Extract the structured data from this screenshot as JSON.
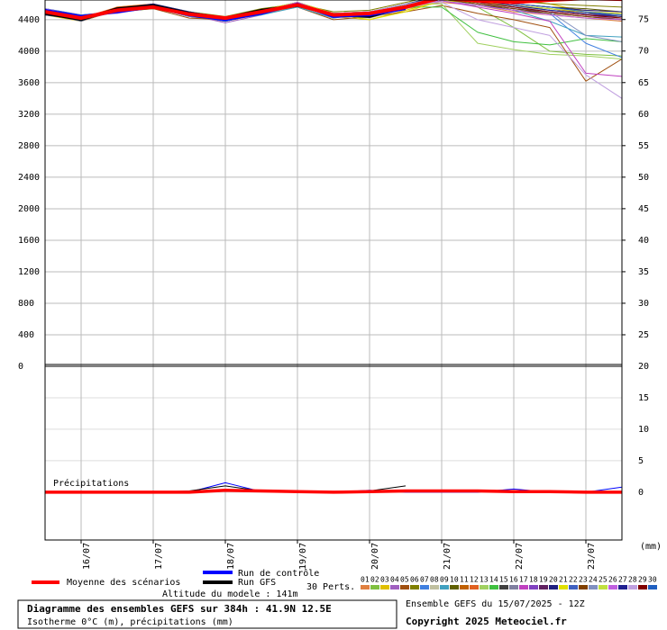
{
  "chart_data": [
    {
      "type": "line",
      "title": "Diagramme des ensembles GEFS sur 384h : 41.9N 12.5E",
      "subtitle": "Isotherme 0°C (m), précipitations (mm)",
      "run_label": "Ensemble GEFS du 15/07/2025 - 12Z",
      "copyright": "Copyright 2025 Meteociel.fr",
      "members_label": "30 Perts.",
      "altitude_label": "Altitude du modele : 141m",
      "x": [
        0,
        12,
        24,
        36,
        48,
        60,
        72,
        84,
        96,
        108,
        120,
        132,
        144,
        156,
        168,
        180,
        192
      ],
      "xlim": [
        0,
        192
      ],
      "ylim": [
        0,
        4650
      ],
      "yticks": [
        0,
        400,
        800,
        1200,
        1600,
        2000,
        2400,
        2800,
        3200,
        3600,
        4000,
        4400
      ],
      "y2lim": [
        20,
        78.1
      ],
      "y2ticks": [
        25,
        30,
        35,
        40,
        45,
        50,
        55,
        60,
        65,
        70,
        75
      ],
      "grid": true,
      "series": [
        {
          "name": "Moyenne des scénarios",
          "color": "#ff0000",
          "values": [
            4500,
            4420,
            4520,
            4560,
            4470,
            4420,
            4500,
            4590,
            4460,
            4480,
            4560,
            4680,
            4640,
            4620,
            4650,
            4670,
            4660
          ]
        },
        {
          "name": "Run de contrôle",
          "color": "#0000ff",
          "values": [
            4520,
            4440,
            4500,
            4560,
            4460,
            4400,
            4480,
            4600,
            4440,
            4460,
            4540,
            null,
            null,
            null,
            null,
            null,
            null
          ]
        },
        {
          "name": "Run GFS",
          "color": "#000000",
          "values": [
            4480,
            4400,
            4540,
            4580,
            4480,
            4420,
            4520,
            4580,
            4460,
            4440,
            4560,
            null,
            null,
            null,
            null,
            null,
            null
          ]
        },
        {
          "name": "01",
          "color": "#e08040",
          "values": [
            4480,
            4400,
            4540,
            4580,
            4440,
            4380,
            4470,
            4560,
            4420,
            4500,
            4540,
            4620,
            4580,
            4500,
            4460,
            4420,
            4380
          ]
        },
        {
          "name": "02",
          "color": "#80c040",
          "values": [
            4520,
            4440,
            4500,
            4540,
            4480,
            4400,
            4520,
            4600,
            4480,
            4460,
            4600,
            4700,
            4560,
            4300,
            4000,
            3960,
            3940
          ]
        },
        {
          "name": "03",
          "color": "#e0c000",
          "values": [
            4460,
            4380,
            4560,
            4600,
            4500,
            4420,
            4480,
            4580,
            4440,
            4400,
            4520,
            4640,
            4700,
            4660,
            4600,
            4500,
            4420
          ]
        },
        {
          "name": "04",
          "color": "#a060c0",
          "values": [
            4540,
            4460,
            4480,
            4560,
            4460,
            4360,
            4460,
            4620,
            4460,
            4480,
            4580,
            4680,
            4620,
            4560,
            4500,
            4460,
            4400
          ]
        },
        {
          "name": "05",
          "color": "#a05010",
          "values": [
            4500,
            4420,
            4520,
            4540,
            4420,
            4400,
            4500,
            4560,
            4400,
            4440,
            4500,
            4580,
            4480,
            4400,
            4300,
            3620,
            3900
          ]
        },
        {
          "name": "06",
          "color": "#808000",
          "values": [
            4480,
            4400,
            4540,
            4560,
            4500,
            4440,
            4540,
            4600,
            4500,
            4520,
            4620,
            4720,
            4680,
            4640,
            4600,
            4580,
            4560
          ]
        },
        {
          "name": "07",
          "color": "#4080e0",
          "values": [
            4520,
            4460,
            4500,
            4580,
            4460,
            4380,
            4480,
            4600,
            4440,
            4460,
            4560,
            4660,
            4600,
            4540,
            4480,
            4100,
            3920
          ]
        },
        {
          "name": "08",
          "color": "#c0c0a0",
          "values": [
            4500,
            4440,
            4520,
            4600,
            4500,
            4420,
            4500,
            4580,
            4460,
            4420,
            4540,
            4640,
            4600,
            4560,
            4520,
            4480,
            4460
          ]
        },
        {
          "name": "09",
          "color": "#40a0c0",
          "values": [
            4460,
            4400,
            4540,
            4560,
            4440,
            4400,
            4460,
            4560,
            4420,
            4480,
            4560,
            4640,
            4580,
            4520,
            4380,
            4200,
            4180
          ]
        },
        {
          "name": "10",
          "color": "#606000",
          "values": [
            4540,
            4420,
            4500,
            4540,
            4480,
            4420,
            4520,
            4620,
            4480,
            4500,
            4600,
            4700,
            4660,
            4600,
            4560,
            4540,
            4500
          ]
        },
        {
          "name": "11",
          "color": "#c06000",
          "values": [
            4500,
            4380,
            4520,
            4580,
            4460,
            4400,
            4500,
            4600,
            4460,
            4460,
            4580,
            4660,
            4620,
            4580,
            4540,
            4480,
            4440
          ]
        },
        {
          "name": "12",
          "color": "#e06020",
          "values": [
            4480,
            4420,
            4560,
            4600,
            4480,
            4380,
            4480,
            4580,
            4440,
            4480,
            4560,
            4680,
            4640,
            4600,
            4560,
            4520,
            4500
          ]
        },
        {
          "name": "13",
          "color": "#a0d060",
          "values": [
            4520,
            4440,
            4500,
            4560,
            4440,
            4420,
            4500,
            4600,
            4480,
            4500,
            4600,
            4600,
            4100,
            4020,
            3960,
            3940,
            3900
          ]
        },
        {
          "name": "14",
          "color": "#40c040",
          "values": [
            4500,
            4400,
            4520,
            4560,
            4480,
            4400,
            4500,
            4580,
            4460,
            4460,
            4560,
            4560,
            4240,
            4120,
            4080,
            4160,
            4120
          ]
        },
        {
          "name": "15",
          "color": "#404040",
          "values": [
            4460,
            4420,
            4540,
            4580,
            4460,
            4380,
            4480,
            4600,
            4440,
            4480,
            4580,
            4660,
            4600,
            4520,
            4480,
            4440,
            4400
          ]
        },
        {
          "name": "16",
          "color": "#8080a0",
          "values": [
            4540,
            4440,
            4500,
            4560,
            4500,
            4420,
            4520,
            4620,
            4480,
            4500,
            4600,
            4700,
            4640,
            4580,
            4540,
            4500,
            4480
          ]
        },
        {
          "name": "17",
          "color": "#c040c0",
          "values": [
            4500,
            4420,
            4540,
            4600,
            4480,
            4400,
            4500,
            4580,
            4460,
            4460,
            4560,
            4640,
            4560,
            4480,
            4380,
            3720,
            3680
          ]
        },
        {
          "name": "18",
          "color": "#8040c0",
          "values": [
            4480,
            4400,
            4500,
            4560,
            4460,
            4420,
            4500,
            4600,
            4460,
            4480,
            4580,
            4680,
            4620,
            4560,
            4500,
            4460,
            4420
          ]
        },
        {
          "name": "19",
          "color": "#602060",
          "values": [
            4520,
            4440,
            4520,
            4580,
            4480,
            4380,
            4480,
            4580,
            4440,
            4460,
            4560,
            4660,
            4600,
            4540,
            4500,
            4460,
            4440
          ]
        },
        {
          "name": "20",
          "color": "#202080",
          "values": [
            4500,
            4420,
            4540,
            4560,
            4440,
            4400,
            4500,
            4600,
            4480,
            4500,
            4600,
            4700,
            4660,
            4600,
            4560,
            4520,
            4500
          ]
        },
        {
          "name": "21",
          "color": "#e0e000",
          "values": [
            4460,
            4400,
            4520,
            4580,
            4500,
            4420,
            4520,
            4620,
            4480,
            4400,
            4500,
            4640,
            4620,
            4580,
            4540,
            4500,
            4480
          ]
        },
        {
          "name": "22",
          "color": "#4060c0",
          "values": [
            4540,
            4460,
            4500,
            4560,
            4460,
            4380,
            4480,
            4580,
            4440,
            4480,
            4580,
            4680,
            4640,
            4580,
            4520,
            4480,
            4460
          ]
        },
        {
          "name": "23",
          "color": "#804000",
          "values": [
            4500,
            4420,
            4520,
            4600,
            4480,
            4400,
            4500,
            4600,
            4460,
            4460,
            4560,
            4660,
            4600,
            4540,
            4480,
            4440,
            4400
          ]
        },
        {
          "name": "24",
          "color": "#8090c0",
          "values": [
            4480,
            4380,
            4540,
            4560,
            4440,
            4420,
            4480,
            4580,
            4460,
            4500,
            4600,
            4680,
            4620,
            4560,
            4500,
            4200,
            4120
          ]
        },
        {
          "name": "25",
          "color": "#c0e040",
          "values": [
            4520,
            4440,
            4500,
            4580,
            4480,
            4400,
            4520,
            4600,
            4480,
            4480,
            4580,
            4660,
            4620,
            4580,
            4540,
            4500,
            4460
          ]
        },
        {
          "name": "26",
          "color": "#c060e0",
          "values": [
            4500,
            4420,
            4520,
            4560,
            4460,
            4380,
            4500,
            4620,
            4460,
            4480,
            4560,
            4640,
            4580,
            4520,
            4460,
            4420,
            4400
          ]
        },
        {
          "name": "27",
          "color": "#202090",
          "values": [
            4460,
            4400,
            4540,
            4600,
            4500,
            4420,
            4480,
            4580,
            4440,
            4460,
            4580,
            4680,
            4640,
            4580,
            4520,
            4480,
            4440
          ]
        },
        {
          "name": "28",
          "color": "#c0a0e0",
          "values": [
            4540,
            4440,
            4500,
            4560,
            4460,
            4400,
            4500,
            4600,
            4480,
            4500,
            4600,
            4620,
            4400,
            4300,
            4200,
            3700,
            3400
          ]
        },
        {
          "name": "29",
          "color": "#800000",
          "values": [
            4500,
            4420,
            4520,
            4580,
            4480,
            4420,
            4520,
            4600,
            4460,
            4460,
            4560,
            4660,
            4620,
            4560,
            4500,
            4460,
            4420
          ]
        },
        {
          "name": "30",
          "color": "#2060c0",
          "values": [
            4480,
            4400,
            4540,
            4560,
            4460,
            4380,
            4480,
            4580,
            4460,
            4480,
            4580,
            4680,
            4640,
            4600,
            4560,
            4500,
            4460
          ]
        }
      ]
    },
    {
      "type": "line",
      "title": "Précipitations",
      "unit_label": "(mm)",
      "x": [
        0,
        12,
        24,
        36,
        48,
        60,
        72,
        84,
        96,
        108,
        120,
        132,
        144,
        156,
        168,
        180,
        192
      ],
      "xlim": [
        0,
        192
      ],
      "xticks": [
        {
          "value": 12,
          "label": "16/07"
        },
        {
          "value": 36,
          "label": "17/07"
        },
        {
          "value": 60,
          "label": "18/07"
        },
        {
          "value": 84,
          "label": "19/07"
        },
        {
          "value": 108,
          "label": "20/07"
        },
        {
          "value": 132,
          "label": "21/07"
        },
        {
          "value": 156,
          "label": "22/07"
        },
        {
          "value": 180,
          "label": "23/07"
        }
      ],
      "ylim": [
        -7.6,
        20
      ],
      "yticks": [
        0,
        5,
        10,
        15,
        20
      ],
      "grid": true,
      "series": [
        {
          "color": "#0000ff",
          "values": [
            0,
            0,
            0,
            0,
            0,
            1.5,
            0.1,
            0,
            0,
            0.3,
            0,
            0,
            0,
            0.5,
            0,
            0,
            0.8
          ]
        },
        {
          "color": "#000000",
          "values": [
            0,
            0,
            0,
            0,
            0.2,
            1,
            0.2,
            0,
            0,
            0.2,
            1,
            null,
            null,
            null,
            null,
            null,
            null
          ]
        },
        {
          "color": "#ff0000",
          "values": [
            0,
            0,
            0,
            0,
            0,
            0.3,
            0.2,
            0.1,
            0,
            0.1,
            0.2,
            0.2,
            0.2,
            0.1,
            0.1,
            0,
            0
          ]
        }
      ]
    }
  ]
}
